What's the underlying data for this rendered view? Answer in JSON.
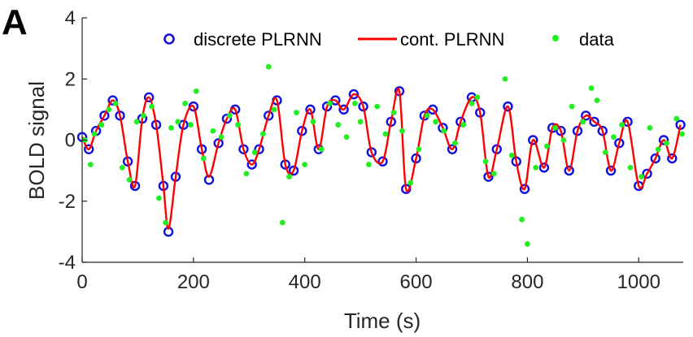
{
  "panel_label": "A",
  "chart_data": {
    "type": "line",
    "title": "",
    "xlabel": "Time (s)",
    "ylabel": "BOLD signal",
    "xlim": [
      0,
      1080
    ],
    "ylim": [
      -4,
      4
    ],
    "xticks": [
      0,
      200,
      400,
      600,
      800,
      1000
    ],
    "yticks": [
      -4,
      -2,
      0,
      2,
      4
    ],
    "grid": false,
    "legend_position": "top",
    "colors": {
      "discrete": "#1010e0",
      "continuous": "#ff0000",
      "data": "#22ee22",
      "axis": "#262626"
    },
    "series": [
      {
        "name": "discrete PLRNN",
        "style": "circle-markers",
        "x": [
          0,
          12,
          25,
          40,
          55,
          68,
          82,
          95,
          108,
          120,
          133,
          146,
          155,
          168,
          182,
          200,
          215,
          228,
          245,
          260,
          275,
          290,
          305,
          318,
          335,
          350,
          365,
          380,
          395,
          410,
          425,
          440,
          455,
          470,
          488,
          505,
          520,
          540,
          555,
          570,
          582,
          600,
          615,
          630,
          648,
          665,
          680,
          700,
          715,
          730,
          745,
          765,
          780,
          795,
          810,
          830,
          845,
          860,
          875,
          890,
          905,
          920,
          935,
          950,
          965,
          980,
          1000,
          1015,
          1030,
          1045,
          1060,
          1075
        ],
        "y": [
          0.1,
          -0.3,
          0.3,
          0.8,
          1.3,
          0.8,
          -0.7,
          -1.5,
          0.7,
          1.4,
          0.5,
          -1.5,
          -3.0,
          -1.2,
          0.5,
          1.1,
          -0.3,
          -1.3,
          -0.1,
          0.7,
          1.0,
          -0.3,
          -0.8,
          -0.3,
          0.8,
          1.3,
          -0.8,
          -1.0,
          0.3,
          1.0,
          -0.3,
          1.1,
          1.3,
          1.0,
          1.5,
          1.1,
          -0.4,
          -0.7,
          0.6,
          1.6,
          -1.6,
          -0.6,
          0.8,
          1.0,
          0.4,
          -0.3,
          0.6,
          1.4,
          0.9,
          -1.2,
          -0.3,
          1.1,
          -0.7,
          -1.6,
          0.0,
          -0.9,
          0.4,
          0.3,
          -1.0,
          0.3,
          0.8,
          0.6,
          0.3,
          -1.0,
          -0.1,
          0.6,
          -1.5,
          -1.1,
          -0.6,
          0.0,
          -0.6,
          0.5
        ]
      },
      {
        "name": "cont. PLRNN",
        "style": "line",
        "x": [
          0,
          12,
          25,
          40,
          55,
          68,
          82,
          95,
          108,
          120,
          133,
          146,
          155,
          168,
          182,
          200,
          215,
          228,
          245,
          260,
          275,
          290,
          305,
          318,
          335,
          350,
          365,
          380,
          395,
          410,
          425,
          440,
          455,
          470,
          488,
          505,
          520,
          540,
          555,
          570,
          582,
          600,
          615,
          630,
          648,
          665,
          680,
          700,
          715,
          730,
          745,
          765,
          780,
          795,
          810,
          830,
          845,
          860,
          875,
          890,
          905,
          920,
          935,
          950,
          965,
          980,
          1000,
          1015,
          1030,
          1045,
          1060,
          1075
        ],
        "y": [
          0.1,
          -0.3,
          0.3,
          0.8,
          1.3,
          0.8,
          -0.7,
          -1.5,
          0.7,
          1.4,
          0.5,
          -1.5,
          -2.9,
          -1.2,
          0.5,
          1.1,
          -0.3,
          -1.2,
          -0.1,
          0.7,
          1.0,
          -0.3,
          -0.8,
          -0.3,
          0.8,
          1.3,
          -0.8,
          -1.0,
          0.3,
          1.0,
          -0.3,
          1.1,
          1.3,
          1.0,
          1.5,
          1.1,
          -0.4,
          -0.7,
          0.6,
          1.6,
          -1.6,
          -0.6,
          0.8,
          1.0,
          0.4,
          -0.3,
          0.6,
          1.4,
          0.9,
          -1.2,
          -0.3,
          1.1,
          -0.7,
          -1.6,
          0.0,
          -0.9,
          0.4,
          0.3,
          -1.0,
          0.3,
          0.8,
          0.6,
          0.3,
          -1.0,
          -0.1,
          0.6,
          -1.5,
          -1.1,
          -0.6,
          0.0,
          -0.6,
          0.5
        ]
      },
      {
        "name": "data",
        "style": "dot-markers",
        "x": [
          5,
          15,
          22,
          35,
          48,
          60,
          72,
          85,
          98,
          110,
          125,
          138,
          150,
          160,
          172,
          185,
          195,
          205,
          218,
          235,
          250,
          265,
          280,
          295,
          310,
          325,
          335,
          345,
          360,
          372,
          385,
          400,
          415,
          430,
          445,
          460,
          475,
          490,
          500,
          515,
          530,
          545,
          560,
          575,
          590,
          605,
          620,
          635,
          650,
          670,
          685,
          700,
          710,
          725,
          740,
          760,
          772,
          790,
          800,
          815,
          835,
          850,
          865,
          880,
          900,
          915,
          925,
          940,
          955,
          970,
          985,
          1005,
          1020,
          1035,
          1050,
          1068,
          1078
        ],
        "y": [
          0.0,
          -0.8,
          0.2,
          0.5,
          1.0,
          1.2,
          -0.9,
          -1.3,
          0.6,
          0.8,
          1.1,
          -1.9,
          -2.7,
          0.4,
          0.6,
          1.2,
          0.5,
          1.6,
          -0.6,
          0.3,
          0.1,
          0.8,
          0.5,
          -1.1,
          -0.4,
          0.2,
          2.4,
          1.0,
          -2.7,
          -1.2,
          0.9,
          -0.8,
          0.6,
          -0.3,
          1.2,
          0.5,
          0.1,
          1.2,
          0.6,
          -0.8,
          1.1,
          0.2,
          0.9,
          0.3,
          -1.4,
          -0.3,
          0.8,
          0.6,
          0.3,
          -0.1,
          0.5,
          1.2,
          1.4,
          -0.7,
          -1.1,
          2.0,
          -0.5,
          -2.6,
          -3.4,
          -0.9,
          -0.2,
          0.4,
          0.0,
          1.1,
          0.6,
          1.7,
          1.3,
          -0.4,
          0.1,
          0.5,
          -0.9,
          -1.2,
          0.4,
          -0.3,
          -0.1,
          0.7,
          0.2
        ]
      }
    ]
  }
}
